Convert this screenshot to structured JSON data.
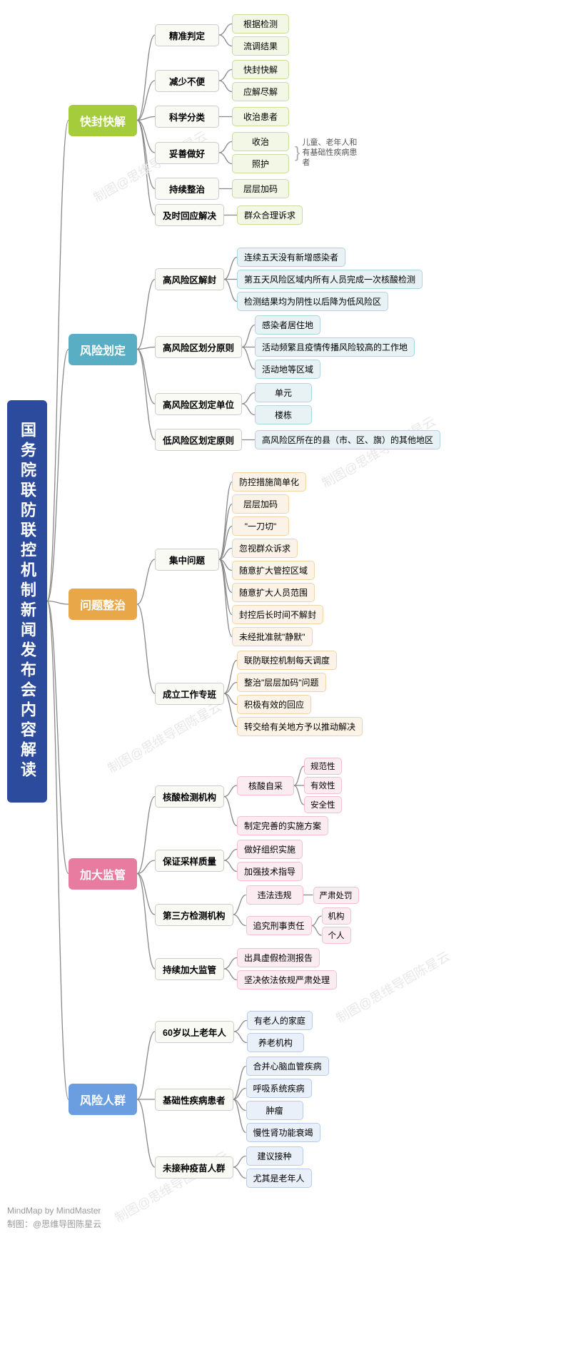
{
  "root": "国务院联防联控机制新闻发布会内容解读",
  "watermark_text": "制图@思维导图陈星云",
  "footer": {
    "line1": "MindMap by MindMaster",
    "line2": "制图：@思维导图陈星云"
  },
  "colors": {
    "root_bg": "#2c4b9c",
    "b1": "#a4cc3b",
    "b1_leaf_bg": "#f2f7e6",
    "b1_leaf_border": "#c8dd9a",
    "b2": "#5aaec4",
    "b2_leaf_bg": "#e8f2f5",
    "b2_leaf_border": "#b0d5e0",
    "b3": "#e8a84a",
    "b3_leaf_bg": "#fbf3e8",
    "b3_leaf_border": "#f0d4a8",
    "b4": "#e87ba0",
    "b4_leaf_bg": "#fbecf2",
    "b4_leaf_border": "#f2c0d2",
    "b5": "#6b9ee0",
    "b5_leaf_bg": "#eaf0f9",
    "b5_leaf_border": "#b8cce8",
    "sub_bg": "#fafaf5",
    "sub_border": "#cccccc",
    "line": "#888888"
  },
  "branches": [
    {
      "label": "快封快解",
      "subs": [
        {
          "label": "精准判定",
          "leaves": [
            {
              "t": "根据检测"
            },
            {
              "t": "流调结果"
            }
          ]
        },
        {
          "label": "减少不便",
          "leaves": [
            {
              "t": "快封快解"
            },
            {
              "t": "应解尽解"
            }
          ]
        },
        {
          "label": "科学分类",
          "leaves": [
            {
              "t": "收治患者"
            }
          ]
        },
        {
          "label": "妥善做好",
          "leaves": [
            {
              "t": "收治"
            },
            {
              "t": "照护"
            }
          ],
          "note": "儿童、老年人和有基础性疾病患者"
        },
        {
          "label": "持续整治",
          "leaves": [
            {
              "t": "层层加码"
            }
          ]
        },
        {
          "label": "及时回应解决",
          "leaves": [
            {
              "t": "群众合理诉求"
            }
          ]
        }
      ]
    },
    {
      "label": "风险划定",
      "subs": [
        {
          "label": "高风险区解封",
          "leaves": [
            {
              "t": "连续五天没有新增感染者"
            },
            {
              "t": "第五天风险区域内所有人员完成一次核酸检测"
            },
            {
              "t": "检测结果均为阴性以后降为低风险区"
            }
          ]
        },
        {
          "label": "高风险区划分原则",
          "leaves": [
            {
              "t": "感染者居住地"
            },
            {
              "t": "活动频繁且疫情传播风险较高的工作地"
            },
            {
              "t": "活动地等区域"
            }
          ]
        },
        {
          "label": "高风险区划定单位",
          "leaves": [
            {
              "t": "单元"
            },
            {
              "t": "楼栋"
            }
          ]
        },
        {
          "label": "低风险区划定原则",
          "leaves": [
            {
              "t": "高风险区所在的县（市、区、旗）的其他地区"
            }
          ]
        }
      ]
    },
    {
      "label": "问题整治",
      "subs": [
        {
          "label": "集中问题",
          "leaves": [
            {
              "t": "防控措施简单化"
            },
            {
              "t": "层层加码"
            },
            {
              "t": "\"一刀切\""
            },
            {
              "t": "忽视群众诉求"
            },
            {
              "t": "随意扩大管控区域"
            },
            {
              "t": "随意扩大人员范围"
            },
            {
              "t": "封控后长时间不解封"
            },
            {
              "t": "未经批准就\"静默\""
            }
          ]
        },
        {
          "label": "成立工作专班",
          "leaves": [
            {
              "t": "联防联控机制每天调度"
            },
            {
              "t": "整治\"层层加码\"问题"
            },
            {
              "t": "积极有效的回应"
            },
            {
              "t": "转交给有关地方予以推动解决"
            }
          ]
        }
      ]
    },
    {
      "label": "加大监管",
      "subs": [
        {
          "label": "核酸检测机构",
          "leaves": [
            {
              "t": "核酸自采",
              "sub": [
                {
                  "t": "规范性"
                },
                {
                  "t": "有效性"
                },
                {
                  "t": "安全性"
                }
              ]
            },
            {
              "t": "制定完善的实施方案"
            }
          ]
        },
        {
          "label": "保证采样质量",
          "leaves": [
            {
              "t": "做好组织实施"
            },
            {
              "t": "加强技术指导"
            }
          ]
        },
        {
          "label": "第三方检测机构",
          "leaves": [
            {
              "t": "违法违规",
              "sub": [
                {
                  "t": "严肃处罚"
                }
              ]
            },
            {
              "t": "追究刑事责任",
              "sub": [
                {
                  "t": "机构"
                },
                {
                  "t": "个人"
                }
              ]
            }
          ]
        },
        {
          "label": "持续加大监管",
          "leaves": [
            {
              "t": "出具虚假检测报告"
            },
            {
              "t": "坚决依法依规严肃处理"
            }
          ]
        }
      ]
    },
    {
      "label": "风险人群",
      "subs": [
        {
          "label": "60岁以上老年人",
          "leaves": [
            {
              "t": "有老人的家庭"
            },
            {
              "t": "养老机构"
            }
          ]
        },
        {
          "label": "基础性疾病患者",
          "leaves": [
            {
              "t": "合并心脑血管疾病"
            },
            {
              "t": "呼吸系统疾病"
            },
            {
              "t": "肿瘤"
            },
            {
              "t": "慢性肾功能衰竭"
            }
          ]
        },
        {
          "label": "未接种疫苗人群",
          "leaves": [
            {
              "t": "建议接种"
            },
            {
              "t": "尤其是老年人"
            }
          ]
        }
      ]
    }
  ]
}
